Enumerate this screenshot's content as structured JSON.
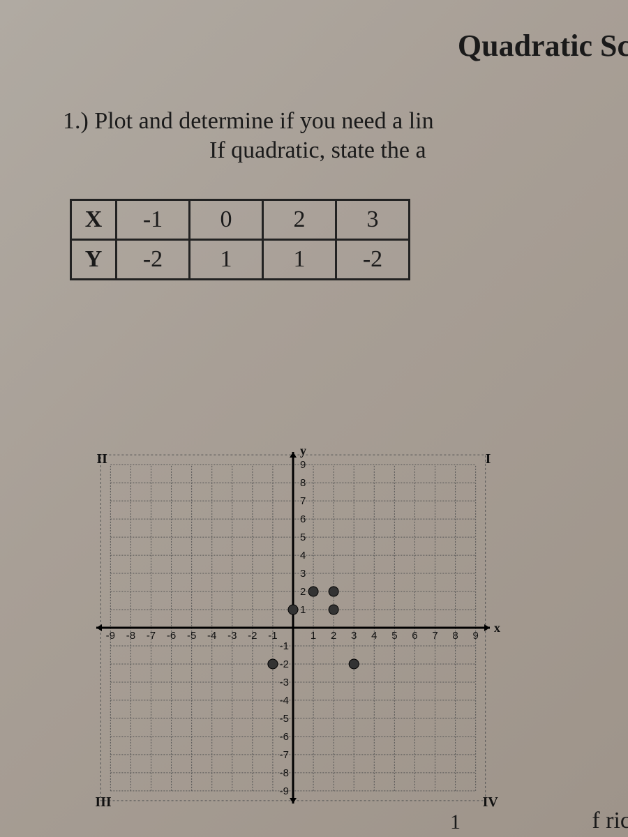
{
  "title": "Quadratic Sc",
  "question_line1": "1.)  Plot and determine if you need a lin",
  "question_line2": "If quadratic, state the a",
  "table": {
    "row_headers": [
      "X",
      "Y"
    ],
    "x": [
      "-1",
      "0",
      "2",
      "3"
    ],
    "y": [
      "-2",
      "1",
      "1",
      "-2"
    ]
  },
  "graph": {
    "xlim": [
      -9.7,
      9.7
    ],
    "ylim": [
      -9.7,
      9.7
    ],
    "tick_min": -9,
    "tick_max": 9,
    "tick_step": 1,
    "axis_labels": {
      "x": "x",
      "y": "y"
    },
    "quadrants": {
      "tl": "II",
      "tr": "I",
      "bl": "III",
      "br": "IV"
    },
    "grid_color": "#555555",
    "axis_color": "#000000",
    "background": "transparent",
    "plotted_points": [
      {
        "x": -1,
        "y": -2
      },
      {
        "x": 0,
        "y": 1
      },
      {
        "x": 2,
        "y": 1
      },
      {
        "x": 3,
        "y": -2
      },
      {
        "x": 1,
        "y": 2
      },
      {
        "x": 2,
        "y": 2
      }
    ],
    "point_color": "#333333",
    "point_radius": 7
  },
  "corner_fragment_left": "1",
  "corner_fragment_right": "f ric"
}
